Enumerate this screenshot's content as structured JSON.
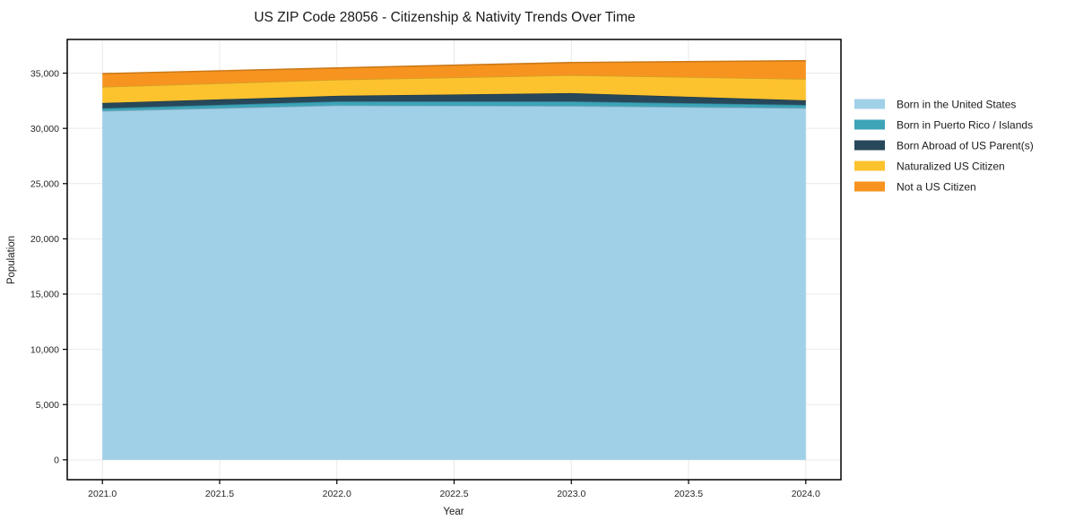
{
  "window": {
    "background": "#ffffff"
  },
  "chart_data": {
    "type": "area",
    "stacked": true,
    "title": "US ZIP Code 28056 - Citizenship & Nativity Trends Over Time",
    "xlabel": "Year",
    "ylabel": "Population",
    "x": [
      2021,
      2022,
      2023,
      2024
    ],
    "series": [
      {
        "name": "Born in the United States",
        "color": "#a0d0e8",
        "values": [
          31580,
          32080,
          32030,
          31840
        ]
      },
      {
        "name": "Born in Puerto Rico / Islands",
        "color": "#3da4b8",
        "values": [
          240,
          360,
          410,
          280
        ]
      },
      {
        "name": "Born Abroad of US Parent(s)",
        "color": "#27485a",
        "values": [
          480,
          510,
          750,
          420
        ]
      },
      {
        "name": "Naturalized US Citizen",
        "color": "#fdc32f",
        "values": [
          1460,
          1460,
          1630,
          1930
        ]
      },
      {
        "name": "Not a US Citizen",
        "color": "#f7941f",
        "values": [
          1190,
          1060,
          1140,
          1650
        ]
      }
    ],
    "stack_totals": [
      34950,
      35470,
      35960,
      36120
    ],
    "xlim": [
      2020.85,
      2024.15
    ],
    "ylim": [
      -1800,
      38050
    ],
    "xticks": {
      "values": [
        2021.0,
        2021.5,
        2022.0,
        2022.5,
        2023.0,
        2023.5,
        2024.0
      ],
      "labels": [
        "2021.0",
        "2021.5",
        "2022.0",
        "2022.5",
        "2023.0",
        "2023.5",
        "2024.0"
      ]
    },
    "yticks": {
      "values": [
        0,
        5000,
        10000,
        15000,
        20000,
        25000,
        30000,
        35000
      ],
      "labels": [
        "0",
        "5,000",
        "10,000",
        "15,000",
        "20,000",
        "25,000",
        "30,000",
        "35,000"
      ]
    },
    "grid": true,
    "legend_position": "outside-right"
  }
}
